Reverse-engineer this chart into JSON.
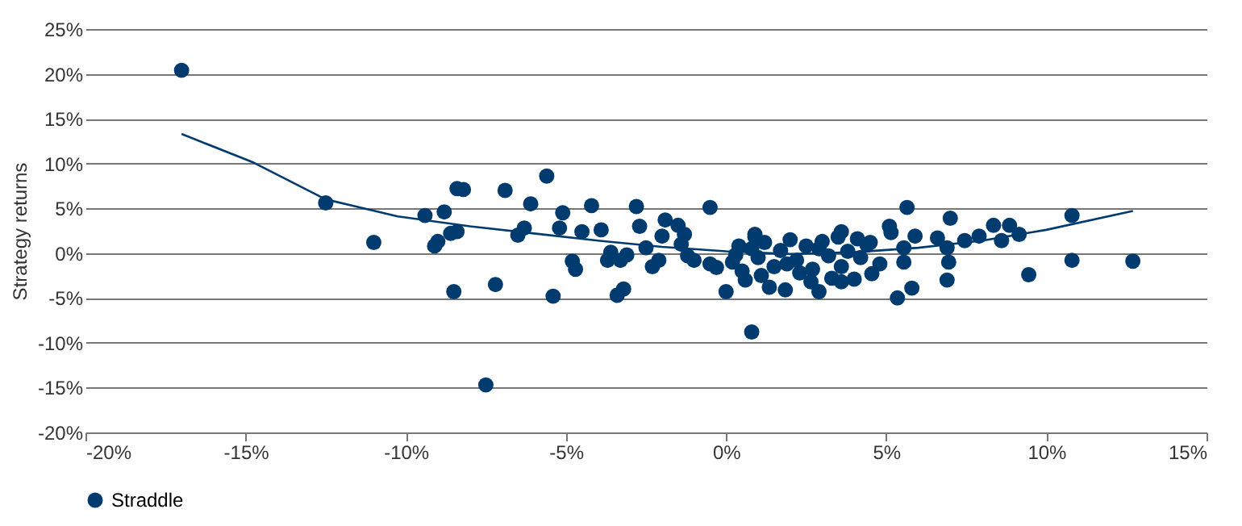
{
  "chart_data": {
    "type": "scatter",
    "ylabel": "Strategy returns",
    "xlim": [
      -20,
      15
    ],
    "xticks": [
      {
        "value": -20,
        "label": "-20%"
      },
      {
        "value": -15,
        "label": "-15%"
      },
      {
        "value": -10,
        "label": "-10%"
      },
      {
        "value": -5,
        "label": "-5%"
      },
      {
        "value": 0,
        "label": "0%"
      },
      {
        "value": 5,
        "label": "5%"
      },
      {
        "value": 10,
        "label": "10%"
      },
      {
        "value": 15,
        "label": "15%"
      }
    ],
    "ylim": [
      -20,
      25
    ],
    "yticks": [
      {
        "value": -20,
        "label": "-20%"
      },
      {
        "value": -15,
        "label": "-15%"
      },
      {
        "value": -10,
        "label": "-10%"
      },
      {
        "value": -5,
        "label": "-5%"
      },
      {
        "value": 0,
        "label": "0%"
      },
      {
        "value": 5,
        "label": "5%"
      },
      {
        "value": 10,
        "label": "10%"
      },
      {
        "value": 15,
        "label": "15%"
      },
      {
        "value": 20,
        "label": "20%"
      },
      {
        "value": 25,
        "label": "25%"
      }
    ],
    "grid": "y",
    "legend": "bottom",
    "marker": "circle",
    "series": [
      {
        "name": "Straddle",
        "color": "#003b6f",
        "x": [
          -17,
          -12.5,
          -11,
          -9.4,
          -9.1,
          -9,
          -8.8,
          -8.6,
          -8.4,
          -8.5,
          -8.4,
          -8.2,
          -7.2,
          -7.5,
          -6.9,
          -6.5,
          -6.3,
          -6.1,
          -5.6,
          -5.4,
          -5.2,
          -5.1,
          -4.8,
          -4.7,
          -4.5,
          -4.2,
          -3.9,
          -3.6,
          -3.4,
          -3.2,
          -3.7,
          -3.3,
          -3.1,
          -2.8,
          -2.7,
          -2.5,
          -2.3,
          -2.1,
          -1.9,
          -1.5,
          -1.3,
          -2,
          -1.4,
          -1.2,
          -1,
          -0.5,
          -0.5,
          -0.3,
          0,
          0.8,
          0.9,
          5.65,
          7,
          5.9,
          6.6,
          6.9,
          6.95,
          6.9,
          7.45,
          7.9,
          8.35,
          8.85,
          8.6,
          9.15,
          9.45,
          10.8,
          10.8,
          12.7,
          5.55,
          5.35,
          5.8,
          5.1,
          5.15,
          5.55,
          4.5,
          4.55,
          4,
          3.6,
          3.6,
          2.9,
          2.65,
          1.85,
          1.35,
          0.9,
          0.2,
          0.5,
          0.8,
          1,
          1.2,
          1.5,
          1.7,
          2,
          2.2,
          2.5,
          2.7,
          3,
          3.2,
          3.5,
          3.8,
          4.2,
          4.4,
          4.8,
          1.1,
          2.3,
          3.3,
          0.4,
          0.6,
          1.9,
          2.9,
          3.6,
          4.1,
          0.3
        ],
        "values": [
          20.4,
          5.6,
          1.2,
          4.2,
          0.8,
          1.3,
          4.6,
          2.2,
          2.4,
          -4.3,
          7.2,
          7.1,
          -3.5,
          -14.7,
          7,
          2,
          2.8,
          5.5,
          8.6,
          -4.8,
          2.8,
          4.5,
          -0.9,
          -1.8,
          2.4,
          5.3,
          2.6,
          0.1,
          -4.7,
          -4,
          -0.8,
          -0.8,
          -0.2,
          5.2,
          3,
          0.6,
          -1.5,
          -0.8,
          3.7,
          3.1,
          2.1,
          1.9,
          1,
          -0.3,
          -0.8,
          5.1,
          -1.2,
          -1.6,
          -4.3,
          -8.8,
          1.8,
          5.1,
          3.9,
          1.9,
          1.7,
          0.6,
          -1,
          -3,
          1.4,
          1.9,
          3.1,
          3.1,
          1.4,
          2.1,
          -2.4,
          4.2,
          -0.8,
          -0.9,
          -1,
          -5,
          -3.9,
          3,
          2.3,
          0.6,
          1.2,
          -2.3,
          -2.9,
          -3.2,
          2.4,
          -4.3,
          -3.2,
          -4.1,
          -3.8,
          2.1,
          -1,
          -2,
          0.5,
          -0.5,
          1.2,
          -1.5,
          0.3,
          1.5,
          -0.8,
          0.8,
          -1.8,
          1.3,
          -0.3,
          1.8,
          0.2,
          -0.5,
          0.9,
          -1.2,
          -2.5,
          -2.2,
          -2.8,
          0.8,
          -3,
          -1.2,
          0.5,
          -1.5,
          1.6,
          -0.2
        ]
      },
      {
        "color": "#003b6f",
        "type": "line",
        "marker": "none",
        "x": [
          -17,
          -14.75,
          -12.5,
          -10.25,
          -8,
          -6,
          -4,
          -2,
          0,
          2,
          4,
          6,
          8,
          10,
          12.7
        ],
        "values": [
          13.3,
          10.1,
          6,
          4.1,
          3,
          2.2,
          1.4,
          0.7,
          0.2,
          -0.1,
          0.1,
          0.6,
          1.4,
          2.6,
          4.7
        ]
      }
    ]
  }
}
